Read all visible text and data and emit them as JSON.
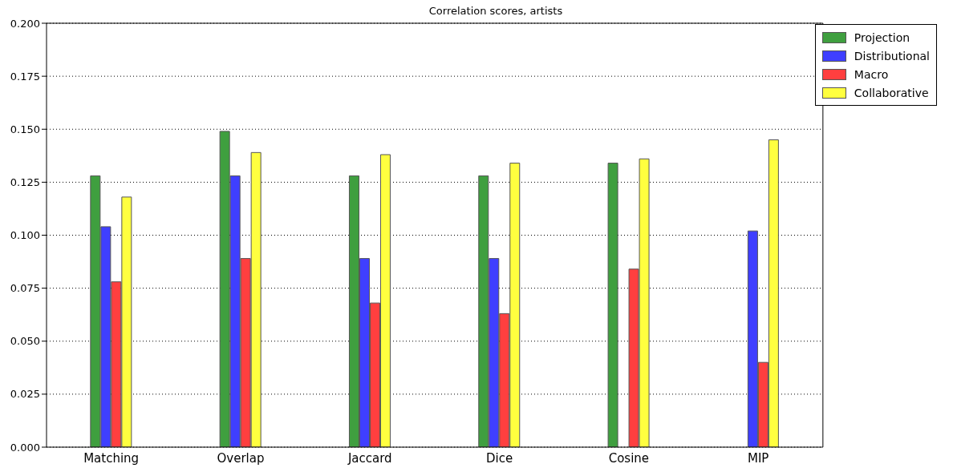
{
  "chart_data": {
    "type": "bar",
    "title": "Correlation scores, artists",
    "categories": [
      "Matching",
      "Overlap",
      "Jaccard",
      "Dice",
      "Cosine",
      "MIP"
    ],
    "series": [
      {
        "name": "Projection",
        "color": "#3f9f3f",
        "values": [
          0.128,
          0.149,
          0.128,
          0.128,
          0.134,
          null
        ]
      },
      {
        "name": "Distributional",
        "color": "#3f3fff",
        "values": [
          0.104,
          0.128,
          0.089,
          0.089,
          null,
          0.102
        ]
      },
      {
        "name": "Macro",
        "color": "#ff3f3f",
        "values": [
          0.078,
          0.089,
          0.068,
          0.063,
          0.084,
          0.04
        ]
      },
      {
        "name": "Collaborative",
        "color": "#ffff3f",
        "values": [
          0.118,
          0.139,
          0.138,
          0.134,
          0.136,
          0.145
        ]
      }
    ],
    "ylim": [
      0,
      0.2
    ],
    "yticks": [
      {
        "value": 0,
        "label": "0.000"
      },
      {
        "value": 0.025,
        "label": "0.025"
      },
      {
        "value": 0.05,
        "label": "0.050"
      },
      {
        "value": 0.075,
        "label": "0.075"
      },
      {
        "value": 0.1,
        "label": "0.100"
      },
      {
        "value": 0.125,
        "label": "0.125"
      },
      {
        "value": 0.15,
        "label": "0.150"
      },
      {
        "value": 0.175,
        "label": "0.175"
      },
      {
        "value": 0.2,
        "label": "0.200"
      }
    ],
    "grid": "y",
    "legend": "top right"
  }
}
